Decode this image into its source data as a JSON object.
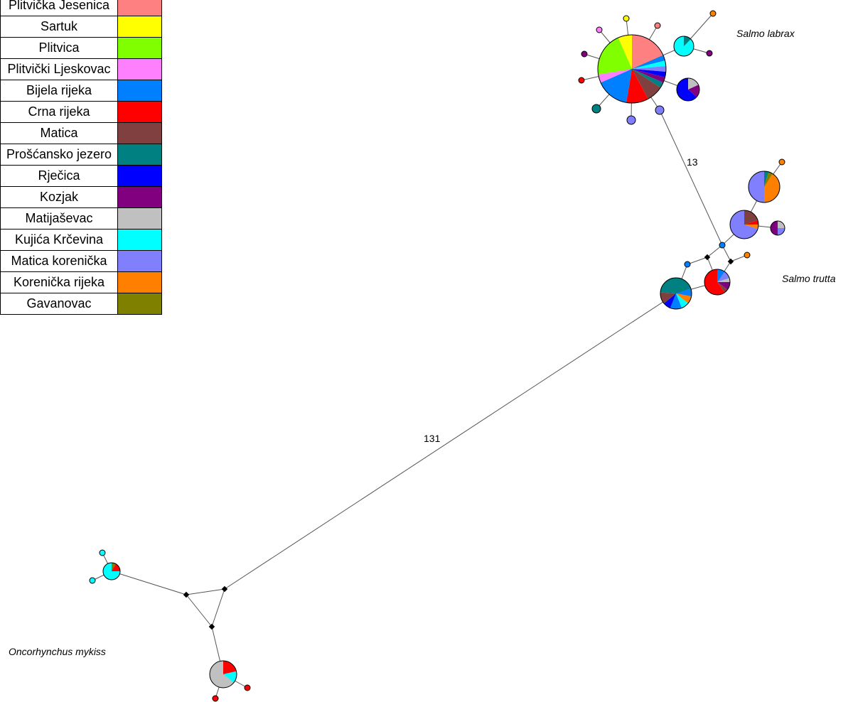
{
  "legend": [
    {
      "label": "Plitvička Jesenica",
      "color": "#ff8080"
    },
    {
      "label": "Sartuk",
      "color": "#ffff00"
    },
    {
      "label": "Plitvica",
      "color": "#80ff00"
    },
    {
      "label": "Plitvički Ljeskovac",
      "color": "#ff80ff"
    },
    {
      "label": "Bijela rijeka",
      "color": "#0080ff"
    },
    {
      "label": "Crna rijeka",
      "color": "#ff0000"
    },
    {
      "label": "Matica",
      "color": "#804040"
    },
    {
      "label": "Prošćansko jezero",
      "color": "#008080"
    },
    {
      "label": "Rječica",
      "color": "#0000ff"
    },
    {
      "label": "Kozjak",
      "color": "#800080"
    },
    {
      "label": "Matijaševac",
      "color": "#c0c0c0"
    },
    {
      "label": "Kujića Krčevina",
      "color": "#00ffff"
    },
    {
      "label": "Matica korenička",
      "color": "#8080ff"
    },
    {
      "label": "Korenička rijeka",
      "color": "#ff8000"
    },
    {
      "label": "Gavanovac",
      "color": "#808000"
    }
  ],
  "species": {
    "salmo_labrax": "Salmo labrax",
    "salmo_trutta": "Salmo trutta",
    "oncorhynchus_mykiss": "Oncorhynchus mykiss"
  },
  "edge_labels": {
    "labrax_trutta": "13",
    "trutta_mykiss": "131"
  }
}
